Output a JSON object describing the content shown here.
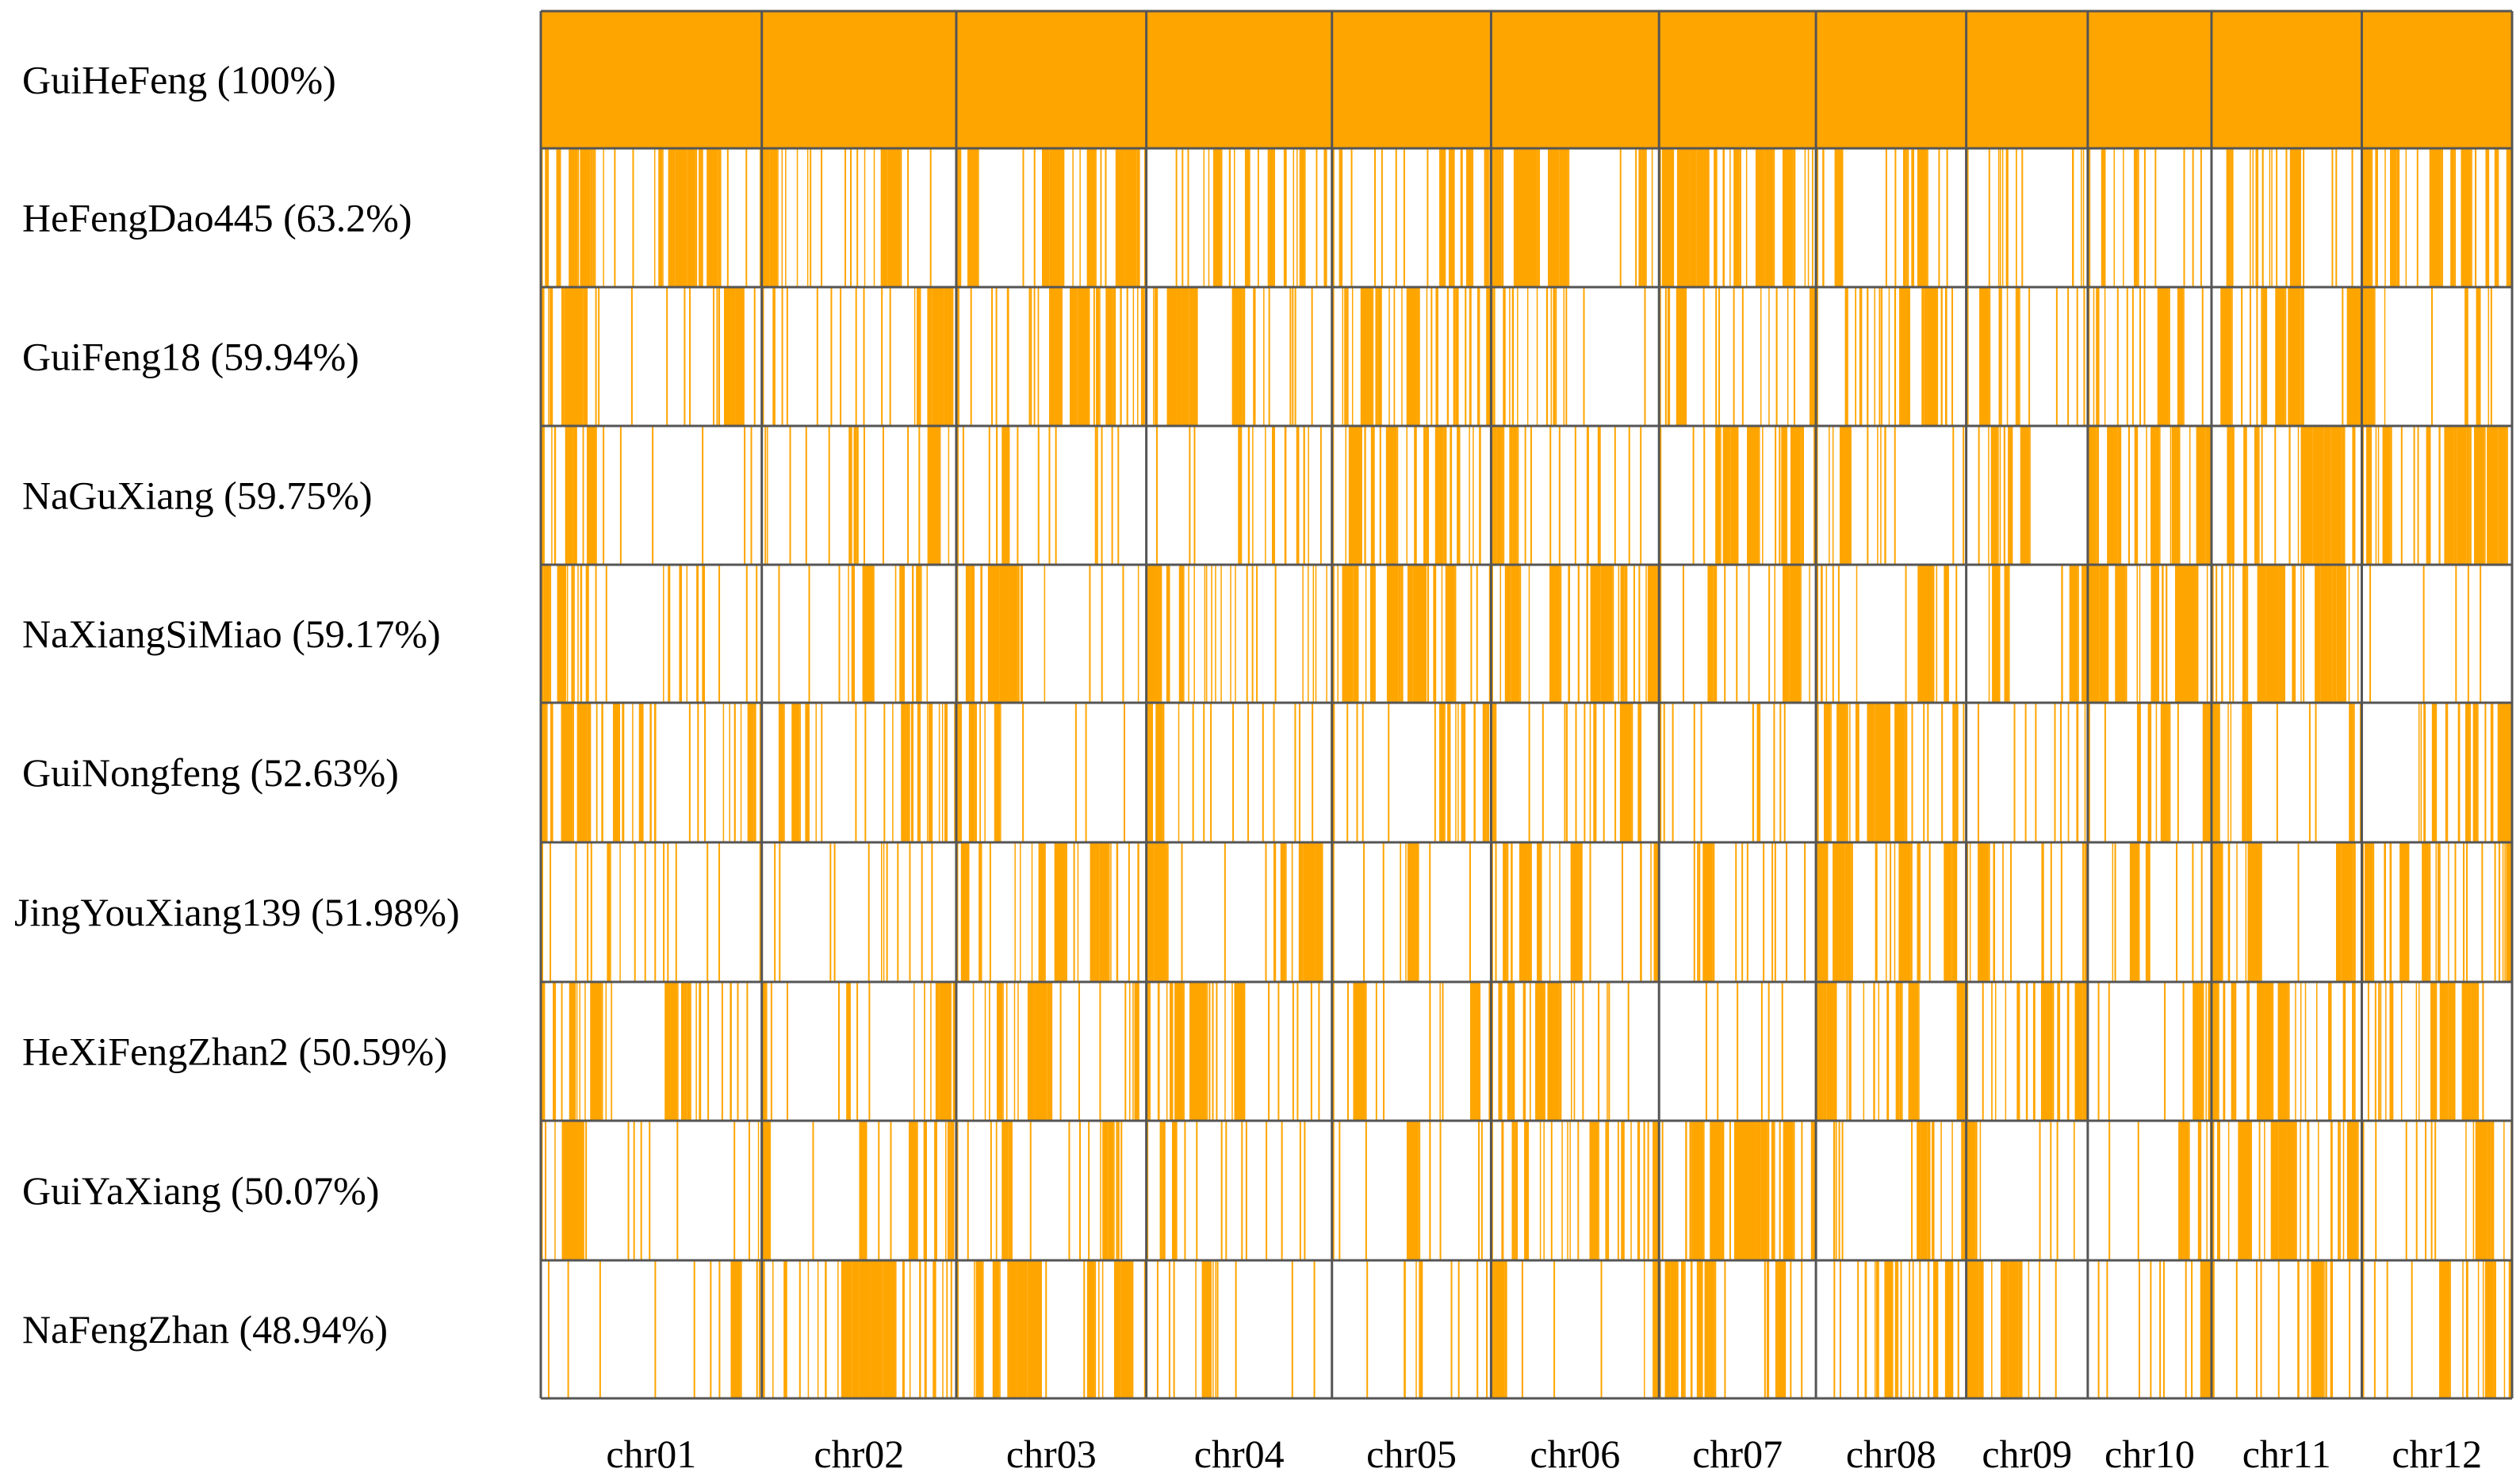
{
  "chart_data": {
    "type": "heatmap",
    "title": "",
    "xlabel": "",
    "ylabel": "",
    "legend": "none",
    "grid": true,
    "colors": {
      "presence": "#FFA500",
      "absence": "#FFFFFF",
      "border": "#555555"
    },
    "rows": [
      {
        "name": "GuiHeFeng",
        "percent_label": "(100%)",
        "percent": 100
      },
      {
        "name": "HeFengDao445",
        "percent_label": "(63.2%)",
        "percent": 63.2
      },
      {
        "name": "GuiFeng18",
        "percent_label": "(59.94%)",
        "percent": 59.94
      },
      {
        "name": "NaGuXiang",
        "percent_label": "(59.75%)",
        "percent": 59.75
      },
      {
        "name": "NaXiangSiMiao",
        "percent_label": "(59.17%)",
        "percent": 59.17
      },
      {
        "name": "GuiNongfeng",
        "percent_label": "(52.63%)",
        "percent": 52.63
      },
      {
        "name": "JingYouXiang139",
        "percent_label": "(51.98%)",
        "percent": 51.98
      },
      {
        "name": "HeXiFengZhan2",
        "percent_label": "(50.59%)",
        "percent": 50.59
      },
      {
        "name": "GuiYaXiang",
        "percent_label": "(50.07%)",
        "percent": 50.07
      },
      {
        "name": "NaFengZhan",
        "percent_label": "(48.94%)",
        "percent": 48.94
      }
    ],
    "chromosomes": [
      "chr01",
      "chr02",
      "chr03",
      "chr04",
      "chr05",
      "chr06",
      "chr07",
      "chr08",
      "chr09",
      "chr10",
      "chr11",
      "chr12"
    ],
    "chromosome_relative_widths": [
      1.0,
      0.88,
      0.86,
      0.84,
      0.72,
      0.76,
      0.71,
      0.68,
      0.55,
      0.56,
      0.68,
      0.68
    ]
  }
}
